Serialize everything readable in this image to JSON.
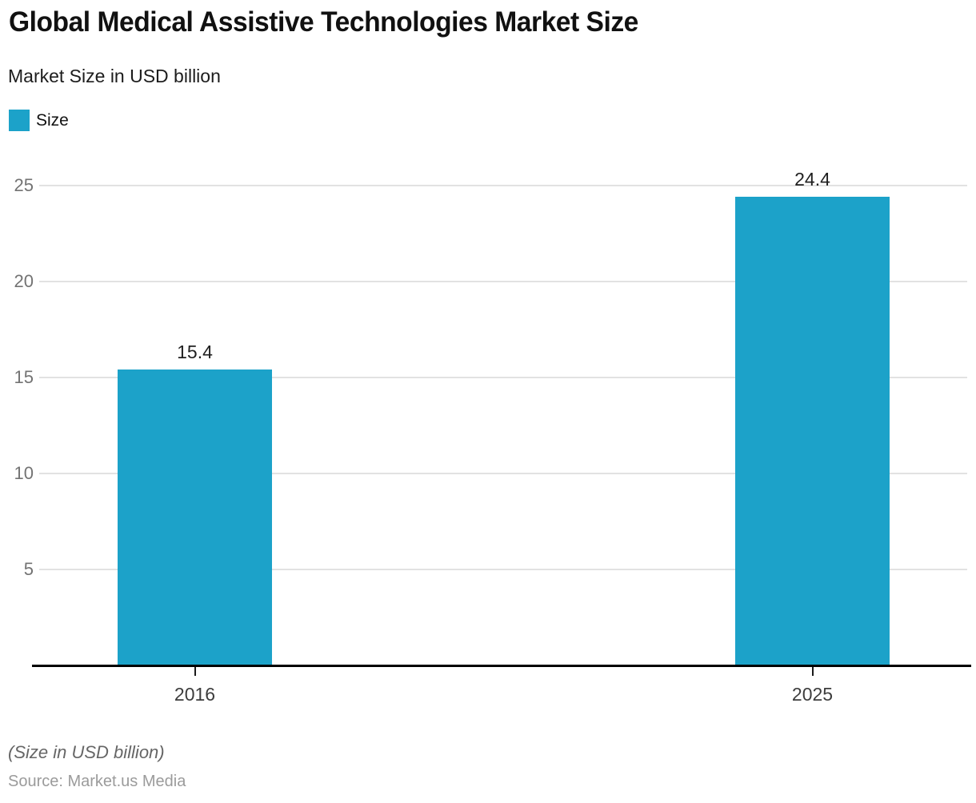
{
  "header": {
    "title": "Global Medical Assistive Technologies Market Size",
    "subtitle": "Market Size in USD billion"
  },
  "legend": {
    "items": [
      {
        "label": "Size",
        "color": "#1CA2C9"
      }
    ]
  },
  "chart_data": {
    "type": "bar",
    "title": "Global Medical Assistive Technologies Market Size",
    "subtitle": "Market Size in USD billion",
    "categories": [
      "2016",
      "2025"
    ],
    "series": [
      {
        "name": "Size",
        "values": [
          15.4,
          24.4
        ]
      }
    ],
    "data_labels": [
      "15.4",
      "24.4"
    ],
    "xlabel": "",
    "ylabel": "",
    "ylim": [
      0,
      25
    ],
    "yticks": [
      5,
      10,
      15,
      20,
      25
    ],
    "grid": true,
    "legend_position": "top-left",
    "bar_color": "#1CA2C9",
    "gridline_color": "#e2e2e2",
    "axis_line_color": "#000000"
  },
  "footer": {
    "note": "(Size in USD billion)",
    "source": "Source: Market.us Media"
  }
}
